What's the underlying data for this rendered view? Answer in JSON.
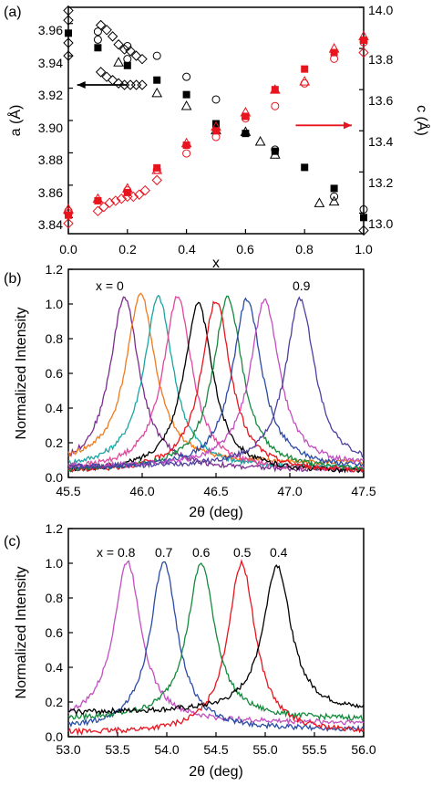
{
  "chart_data": [
    {
      "panel_label": "(a)",
      "type": "scatter",
      "xlabel": "x",
      "ylabel_left": "a (Å)",
      "ylabel_right": "c (Å)",
      "xlim": [
        0.0,
        1.0
      ],
      "ylim_left": [
        3.83,
        3.97
      ],
      "ylim_right": [
        12.9,
        14.0
      ],
      "xticks": [
        "0.0",
        "0.2",
        "0.4",
        "0.6",
        "0.8",
        "1.0"
      ],
      "xtick_values": [
        0,
        0.2,
        0.4,
        0.6,
        0.8,
        1.0
      ],
      "yticks_left": [
        "3.84",
        "3.86",
        "3.88",
        "3.90",
        "3.92",
        "3.94",
        "3.96"
      ],
      "ytick_values_left": [
        3.84,
        3.86,
        3.88,
        3.9,
        3.92,
        3.94,
        3.96
      ],
      "yticks_right": [
        "13.0",
        "13.2",
        "13.4",
        "13.6",
        "13.8",
        "14.0"
      ],
      "ytick_values_right": [
        13.0,
        13.2,
        13.4,
        13.6,
        13.8,
        14.0
      ],
      "series": [
        {
          "marker": "square-filled",
          "color": "#000000",
          "axis": "left",
          "points": [
            [
              0.0,
              3.954
            ],
            [
              0.1,
              3.945
            ],
            [
              0.2,
              3.934
            ],
            [
              0.3,
              3.925
            ],
            [
              0.4,
              3.916
            ],
            [
              0.5,
              3.898
            ],
            [
              0.6,
              3.892
            ],
            [
              0.7,
              3.881
            ],
            [
              0.8,
              3.871
            ],
            [
              0.9,
              3.858
            ],
            [
              1.0,
              3.84
            ]
          ]
        },
        {
          "marker": "diamond-open",
          "color": "#000000",
          "axis": "left",
          "points": [
            [
              0.0,
              3.968
            ],
            [
              0.0,
              3.962
            ],
            [
              0.0,
              3.948
            ],
            [
              0.0,
              3.94
            ],
            [
              0.11,
              3.959
            ],
            [
              0.13,
              3.956
            ],
            [
              0.15,
              3.952
            ],
            [
              0.17,
              3.947
            ],
            [
              0.19,
              3.944
            ],
            [
              0.21,
              3.943
            ],
            [
              0.23,
              3.94
            ],
            [
              0.25,
              3.938
            ],
            [
              0.11,
              3.93
            ],
            [
              0.13,
              3.927
            ],
            [
              0.15,
              3.925
            ],
            [
              0.17,
              3.923
            ],
            [
              0.19,
              3.922
            ],
            [
              0.21,
              3.922
            ],
            [
              0.23,
              3.922
            ],
            [
              0.25,
              3.922
            ],
            [
              1.0,
              3.832
            ]
          ]
        },
        {
          "marker": "circle-open",
          "color": "#000000",
          "axis": "left",
          "points": [
            [
              0.1,
              3.955
            ],
            [
              0.1,
              3.95
            ],
            [
              0.2,
              3.946
            ],
            [
              0.2,
              3.938
            ],
            [
              0.3,
              3.94
            ],
            [
              0.4,
              3.927
            ],
            [
              0.5,
              3.913
            ],
            [
              0.7,
              3.882
            ],
            [
              0.9,
              3.853
            ],
            [
              1.0,
              3.845
            ]
          ]
        },
        {
          "marker": "triangle-open",
          "color": "#000000",
          "axis": "left",
          "points": [
            [
              0.17,
              3.936
            ],
            [
              0.3,
              3.917
            ],
            [
              0.4,
              3.909
            ],
            [
              0.5,
              3.894
            ],
            [
              0.6,
              3.893
            ],
            [
              0.65,
              3.887
            ],
            [
              0.7,
              3.879
            ],
            [
              0.85,
              3.849
            ],
            [
              0.9,
              3.85
            ]
          ]
        },
        {
          "marker": "square-filled",
          "color": "#e8141e",
          "axis": "right",
          "points": [
            [
              0.0,
              12.99
            ],
            [
              0.1,
              13.06
            ],
            [
              0.2,
              13.1
            ],
            [
              0.3,
              13.22
            ],
            [
              0.4,
              13.33
            ],
            [
              0.5,
              13.4
            ],
            [
              0.6,
              13.47
            ],
            [
              0.7,
              13.6
            ],
            [
              0.8,
              13.7
            ],
            [
              0.9,
              13.78
            ],
            [
              1.0,
              13.84
            ]
          ]
        },
        {
          "marker": "diamond-open",
          "color": "#e8141e",
          "axis": "right",
          "points": [
            [
              0.0,
              12.95
            ],
            [
              0.0,
              13.0
            ],
            [
              0.1,
              13.01
            ],
            [
              0.12,
              13.03
            ],
            [
              0.14,
              13.05
            ],
            [
              0.16,
              13.06
            ],
            [
              0.18,
              13.07
            ],
            [
              0.2,
              13.08
            ],
            [
              0.22,
              13.08
            ],
            [
              0.24,
              13.09
            ],
            [
              0.26,
              13.11
            ],
            [
              0.3,
              13.16
            ],
            [
              1.0,
              13.78
            ]
          ]
        },
        {
          "marker": "circle-open",
          "color": "#e8141e",
          "axis": "right",
          "points": [
            [
              0.0,
              13.01
            ],
            [
              0.2,
              13.11
            ],
            [
              0.3,
              13.21
            ],
            [
              0.4,
              13.29
            ],
            [
              0.5,
              13.37
            ],
            [
              0.6,
              13.46
            ],
            [
              0.7,
              13.52
            ],
            [
              0.8,
              13.63
            ],
            [
              0.9,
              13.75
            ],
            [
              1.0,
              13.83
            ]
          ]
        },
        {
          "marker": "triangle-open",
          "color": "#e8141e",
          "axis": "right",
          "points": [
            [
              0.0,
              13.02
            ],
            [
              0.1,
              13.07
            ],
            [
              0.2,
              13.12
            ],
            [
              0.3,
              13.21
            ],
            [
              0.4,
              13.34
            ],
            [
              0.5,
              13.42
            ],
            [
              0.6,
              13.49
            ],
            [
              0.7,
              13.6
            ],
            [
              0.8,
              13.64
            ],
            [
              0.9,
              13.8
            ],
            [
              1.0,
              13.86
            ]
          ]
        }
      ],
      "arrows": [
        {
          "color": "#000000",
          "direction": "left",
          "from": [
            0.2,
            3.922
          ],
          "to": [
            0.03,
            3.922
          ]
        },
        {
          "color": "#e8141e",
          "direction": "right",
          "from": [
            0.77,
            3.897
          ],
          "to": [
            0.96,
            3.897
          ]
        }
      ]
    },
    {
      "panel_label": "(b)",
      "type": "line",
      "xlabel": "2θ (deg)",
      "ylabel": "Normalized Intensity",
      "xlim": [
        45.5,
        47.5
      ],
      "ylim": [
        0.0,
        1.2
      ],
      "xticks": [
        "45.5",
        "46.0",
        "46.5",
        "47.0",
        "47.5"
      ],
      "xtick_values": [
        45.5,
        46.0,
        46.5,
        47.0,
        47.5
      ],
      "yticks": [
        "0.0",
        "0.2",
        "0.4",
        "0.6",
        "0.8",
        "1.0",
        "1.2"
      ],
      "ytick_values": [
        0.0,
        0.2,
        0.4,
        0.6,
        0.8,
        1.0,
        1.2
      ],
      "annotations": [
        "x = 0",
        "0.9"
      ],
      "peak_width_deg": 0.12,
      "series": [
        {
          "color": "#7b2c8e",
          "center": 45.88,
          "peak": 1.04,
          "base": 0.04
        },
        {
          "color": "#f07a1e",
          "center": 45.99,
          "peak": 1.06,
          "base": 0.08
        },
        {
          "color": "#1aa5a5",
          "center": 46.11,
          "peak": 1.04,
          "base": 0.05
        },
        {
          "color": "#e0479e",
          "center": 46.24,
          "peak": 1.04,
          "base": 0.04
        },
        {
          "color": "#000000",
          "center": 46.38,
          "peak": 1.0,
          "base": 0.03
        },
        {
          "color": "#e8141e",
          "center": 46.5,
          "peak": 1.02,
          "base": 0.03
        },
        {
          "color": "#158a3c",
          "center": 46.58,
          "peak": 1.04,
          "base": 0.04
        },
        {
          "color": "#2b4ba6",
          "center": 46.71,
          "peak": 1.03,
          "base": 0.05
        },
        {
          "color": "#c24fbf",
          "center": 46.83,
          "peak": 1.02,
          "base": 0.06
        },
        {
          "color": "#4e3fa0",
          "center": 47.07,
          "peak": 1.03,
          "base": 0.06
        }
      ]
    },
    {
      "panel_label": "(c)",
      "type": "line",
      "xlabel": "2θ (deg)",
      "ylabel": "Normalized Intensity",
      "xlim": [
        53.0,
        56.0
      ],
      "ylim": [
        0.0,
        1.2
      ],
      "xticks": [
        "53.0",
        "53.5",
        "54.0",
        "54.5",
        "55.0",
        "55.5",
        "56.0"
      ],
      "xtick_values": [
        53.0,
        53.5,
        54.0,
        54.5,
        55.0,
        55.5,
        56.0
      ],
      "yticks": [
        "0.0",
        "0.2",
        "0.4",
        "0.6",
        "0.8",
        "1.0",
        "1.2"
      ],
      "ytick_values": [
        0.0,
        0.2,
        0.4,
        0.6,
        0.8,
        1.0,
        1.2
      ],
      "annotations": [
        "x = 0.8",
        "0.7",
        "0.6",
        "0.5",
        "0.4"
      ],
      "peak_width_deg": 0.17,
      "series": [
        {
          "name": "x = 0.8",
          "color": "#c24fbf",
          "center": 53.6,
          "peak": 1.01,
          "base": 0.08
        },
        {
          "name": "0.7",
          "color": "#2b4ba6",
          "center": 53.97,
          "peak": 1.0,
          "base": 0.04
        },
        {
          "name": "0.6",
          "color": "#158a3c",
          "center": 54.35,
          "peak": 1.0,
          "base": 0.1
        },
        {
          "name": "0.5",
          "color": "#e8141e",
          "center": 54.76,
          "peak": 1.0,
          "base": 0.02
        },
        {
          "name": "0.4",
          "color": "#000000",
          "center": 55.12,
          "peak": 0.99,
          "base": 0.14
        }
      ]
    }
  ]
}
